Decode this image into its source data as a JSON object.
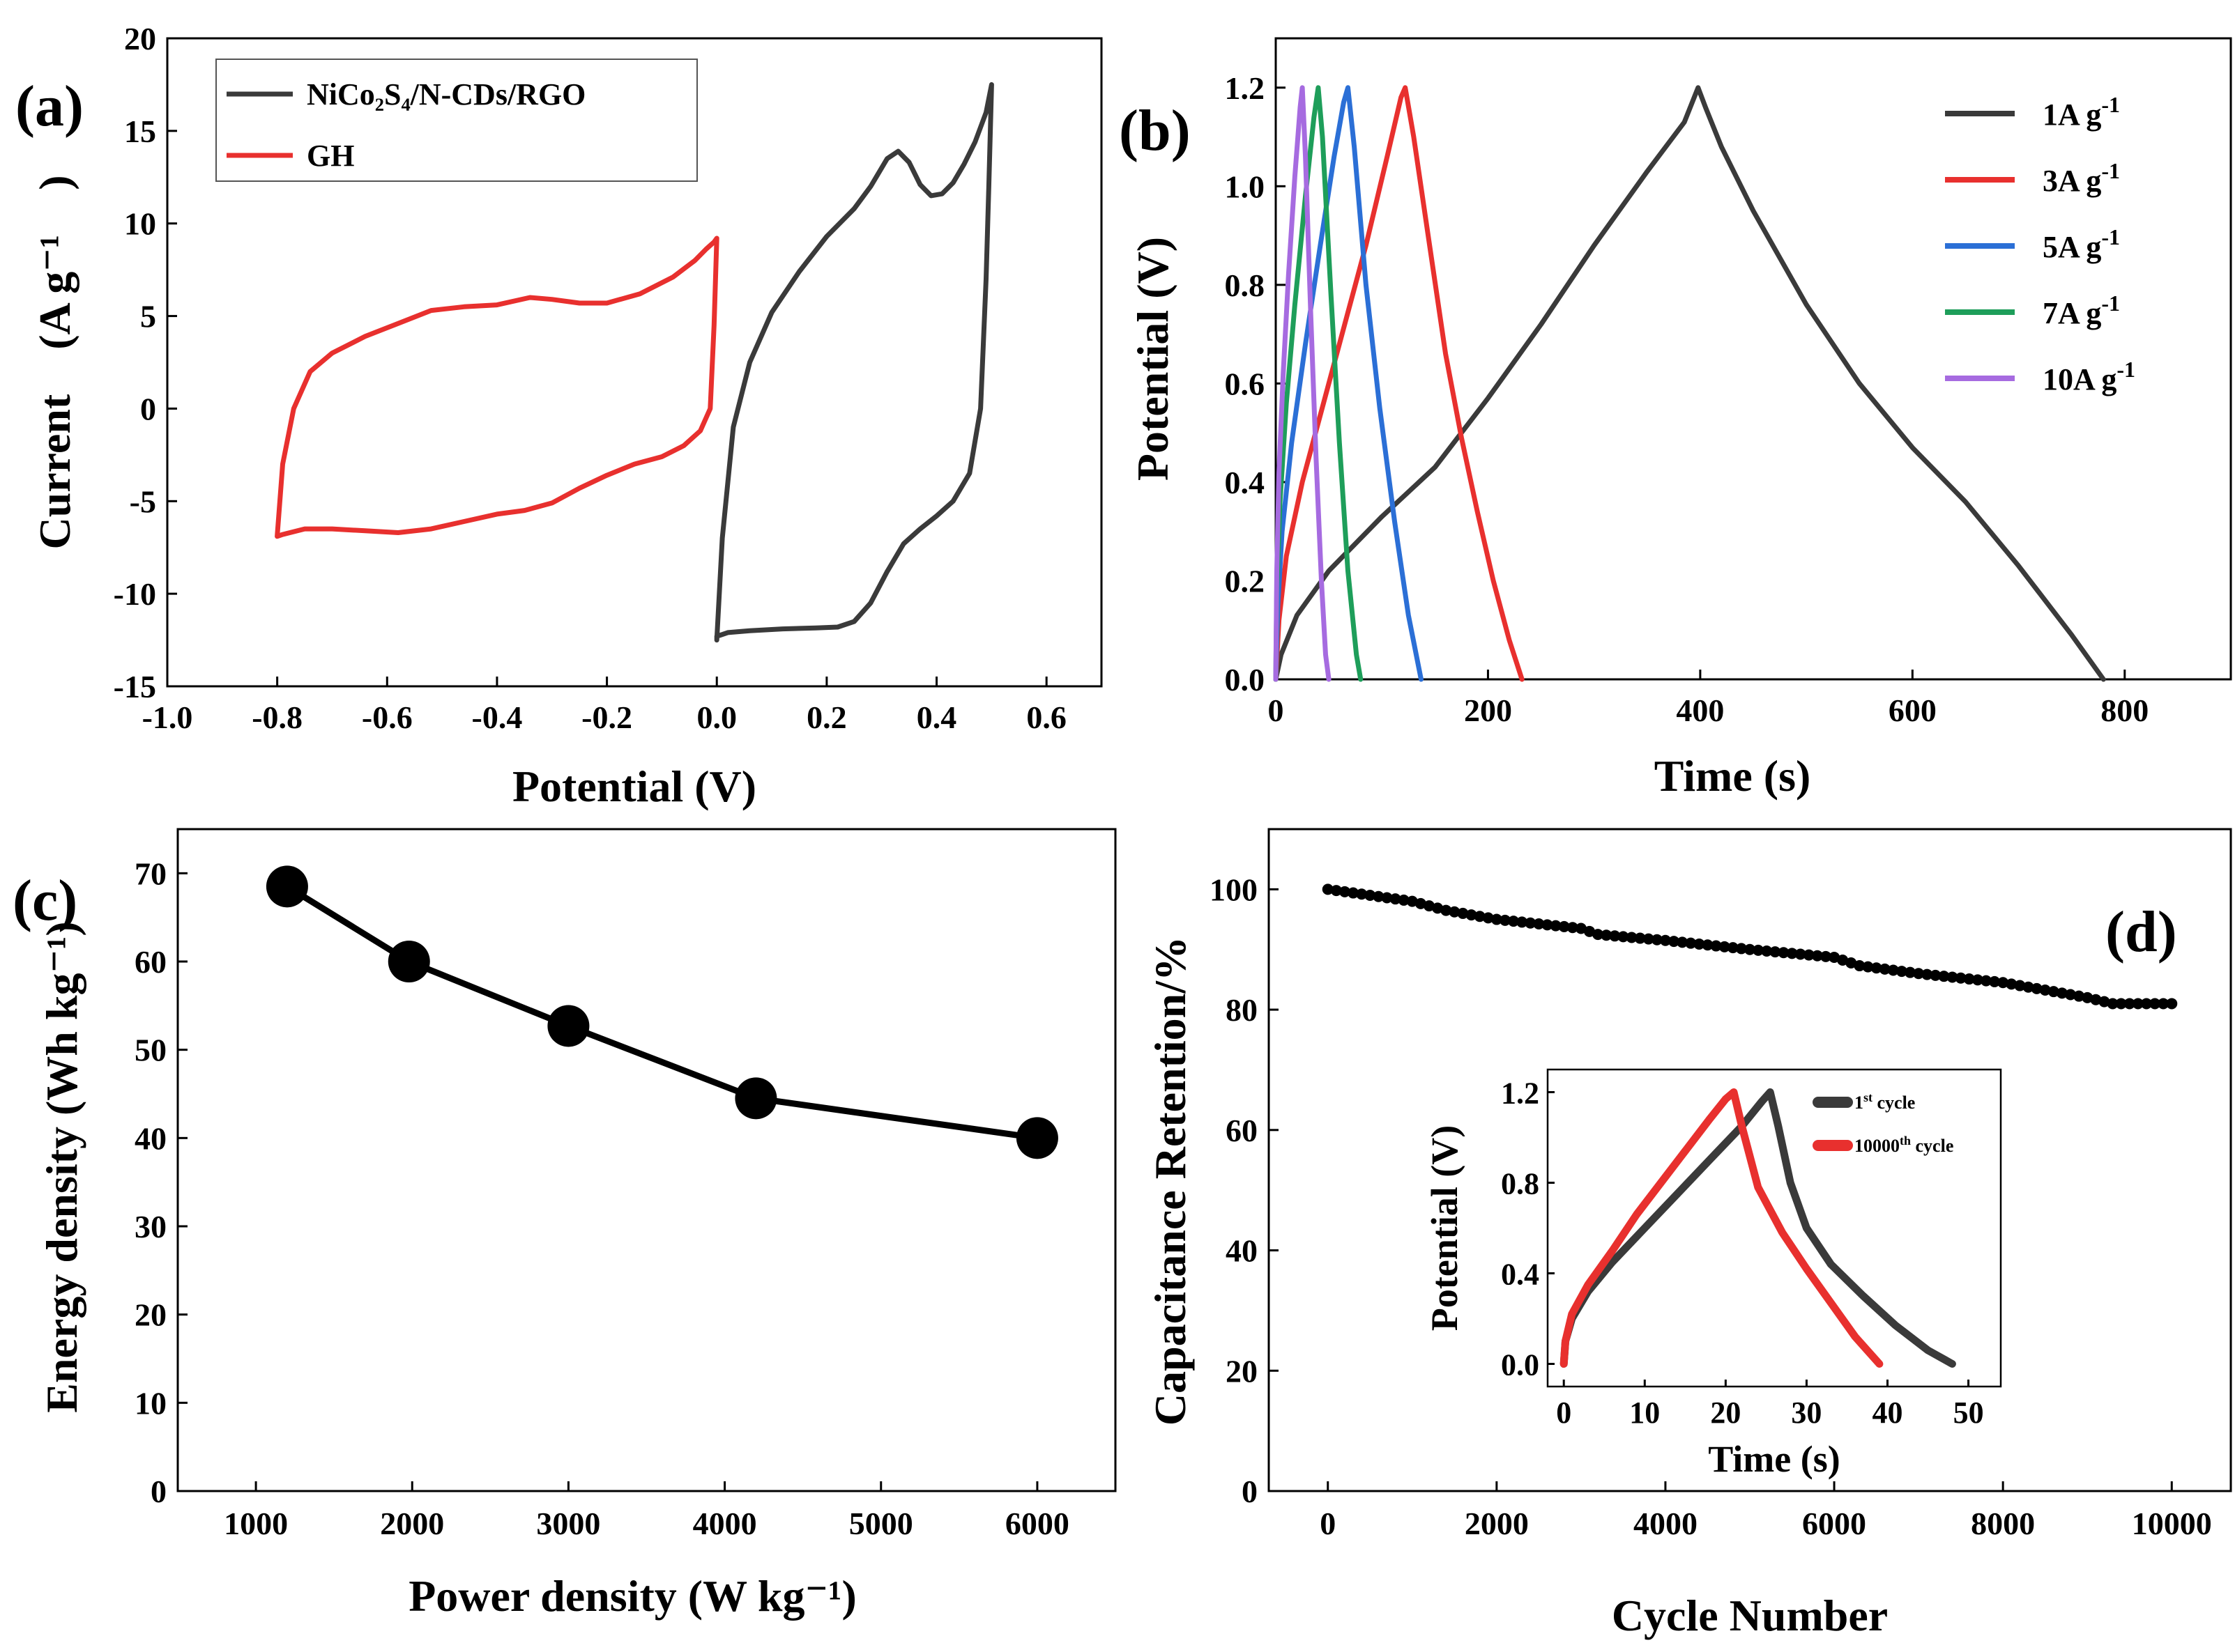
{
  "chart_data": [
    {
      "id": "a",
      "panel_label": "(a)",
      "type": "line",
      "xlabel": "Potential (V)",
      "ylabel": "Current　(A g⁻¹　)",
      "xlim": [
        -1.0,
        0.7
      ],
      "ylim": [
        -15,
        20
      ],
      "xticks": [
        -1.0,
        -0.8,
        -0.6,
        -0.4,
        -0.2,
        0.0,
        0.2,
        0.4,
        0.6
      ],
      "xtick_labels": [
        "-1.0",
        "-0.8",
        "-0.6",
        "-0.4",
        "-0.2",
        "0.0",
        "0.2",
        "0.4",
        "0.6"
      ],
      "yticks": [
        -15,
        -10,
        -5,
        0,
        5,
        10,
        15,
        20
      ],
      "ytick_labels": [
        "-15",
        "-10",
        "-5",
        "0",
        "5",
        "10",
        "15",
        "20"
      ],
      "legend_position": "top-left",
      "series": [
        {
          "name": "NiCo₂S₄/N-CDs/RGO",
          "color": "#3a3a3a",
          "x": [
            0.0,
            0.01,
            0.03,
            0.06,
            0.1,
            0.15,
            0.2,
            0.25,
            0.28,
            0.31,
            0.33,
            0.35,
            0.37,
            0.39,
            0.41,
            0.43,
            0.45,
            0.47,
            0.49,
            0.5,
            0.495,
            0.49,
            0.48,
            0.46,
            0.43,
            0.4,
            0.37,
            0.34,
            0.31,
            0.28,
            0.25,
            0.22,
            0.18,
            0.12,
            0.06,
            0.02,
            0.0,
            0.0
          ],
          "y": [
            -12.5,
            -7.0,
            -1.0,
            2.5,
            5.2,
            7.4,
            9.3,
            10.8,
            12.0,
            13.5,
            13.9,
            13.3,
            12.1,
            11.5,
            11.6,
            12.2,
            13.2,
            14.4,
            16.0,
            17.5,
            12.0,
            7.0,
            0.0,
            -3.5,
            -5.0,
            -5.8,
            -6.5,
            -7.3,
            -8.8,
            -10.5,
            -11.5,
            -11.8,
            -11.85,
            -11.9,
            -12.0,
            -12.1,
            -12.3,
            -12.5
          ]
        },
        {
          "name": "GH",
          "color": "#e8302e",
          "x": [
            -0.8,
            -0.79,
            -0.77,
            -0.74,
            -0.7,
            -0.64,
            -0.58,
            -0.52,
            -0.46,
            -0.4,
            -0.34,
            -0.3,
            -0.25,
            -0.2,
            -0.14,
            -0.08,
            -0.04,
            -0.02,
            -0.005,
            0.0,
            -0.005,
            -0.012,
            -0.03,
            -0.06,
            -0.1,
            -0.15,
            -0.2,
            -0.25,
            -0.3,
            -0.35,
            -0.4,
            -0.46,
            -0.52,
            -0.58,
            -0.64,
            -0.7,
            -0.75,
            -0.79,
            -0.8
          ],
          "y": [
            -6.9,
            -3.0,
            0.0,
            2.0,
            3.0,
            3.9,
            4.6,
            5.3,
            5.5,
            5.6,
            6.0,
            5.9,
            5.7,
            5.7,
            6.2,
            7.1,
            8.0,
            8.6,
            9.0,
            9.2,
            4.5,
            0.0,
            -1.2,
            -2.0,
            -2.6,
            -3.0,
            -3.6,
            -4.3,
            -5.1,
            -5.5,
            -5.7,
            -6.1,
            -6.5,
            -6.7,
            -6.6,
            -6.5,
            -6.5,
            -6.8,
            -6.9
          ]
        }
      ]
    },
    {
      "id": "b",
      "panel_label": "(b)",
      "type": "line",
      "xlabel": "Time (s)",
      "ylabel": "Potential (V)",
      "xlim": [
        0,
        900
      ],
      "ylim": [
        0.0,
        1.3
      ],
      "xticks": [
        0,
        200,
        400,
        600,
        800
      ],
      "xtick_labels": [
        "0",
        "200",
        "400",
        "600",
        "800"
      ],
      "yticks": [
        0.0,
        0.2,
        0.4,
        0.6,
        0.8,
        1.0,
        1.2
      ],
      "ytick_labels": [
        "0.0",
        "0.2",
        "0.4",
        "0.6",
        "0.8",
        "1.0",
        "1.2"
      ],
      "legend_position": "top-right",
      "series": [
        {
          "name": "1A g-1",
          "current_density_label": "1A",
          "unit_label": "g",
          "unit_exponent": "-1",
          "color": "#3a3a3a",
          "x": [
            0,
            5,
            20,
            50,
            100,
            150,
            200,
            250,
            300,
            350,
            385,
            398,
            405,
            420,
            450,
            500,
            550,
            600,
            650,
            700,
            750,
            780
          ],
          "y": [
            0.0,
            0.05,
            0.13,
            0.22,
            0.33,
            0.43,
            0.57,
            0.72,
            0.88,
            1.03,
            1.13,
            1.2,
            1.16,
            1.08,
            0.95,
            0.76,
            0.6,
            0.47,
            0.36,
            0.23,
            0.09,
            0.0
          ]
        },
        {
          "name": "3A g-1",
          "current_density_label": "3A",
          "unit_label": "g",
          "unit_exponent": "-1",
          "color": "#e8302e",
          "x": [
            0,
            3,
            10,
            25,
            45,
            65,
            85,
            105,
            118,
            122,
            130,
            145,
            160,
            175,
            190,
            205,
            220,
            232
          ],
          "y": [
            0.0,
            0.12,
            0.25,
            0.4,
            0.56,
            0.72,
            0.88,
            1.06,
            1.18,
            1.2,
            1.1,
            0.88,
            0.66,
            0.49,
            0.34,
            0.2,
            0.08,
            0.0
          ]
        },
        {
          "name": "5A g-1",
          "current_density_label": "5A",
          "unit_label": "g",
          "unit_exponent": "-1",
          "color": "#2b6fd6",
          "x": [
            0,
            2,
            6,
            15,
            28,
            42,
            55,
            64,
            68,
            74,
            85,
            98,
            112,
            125,
            137
          ],
          "y": [
            0.0,
            0.15,
            0.3,
            0.48,
            0.68,
            0.88,
            1.06,
            1.17,
            1.2,
            1.08,
            0.8,
            0.55,
            0.32,
            0.13,
            0.0
          ]
        },
        {
          "name": "7A g-1",
          "current_density_label": "7A",
          "unit_label": "g",
          "unit_exponent": "-1",
          "color": "#1e9e5a",
          "x": [
            0,
            1,
            4,
            10,
            18,
            28,
            36,
            40,
            44,
            52,
            60,
            68,
            76,
            80
          ],
          "y": [
            0.0,
            0.18,
            0.36,
            0.56,
            0.76,
            0.98,
            1.14,
            1.2,
            1.1,
            0.78,
            0.48,
            0.22,
            0.05,
            0.0
          ]
        },
        {
          "name": "10A g-1",
          "current_density_label": "10A",
          "unit_label": "g",
          "unit_exponent": "-1",
          "color": "#a66be0",
          "x": [
            0,
            1,
            3,
            7,
            12,
            18,
            23,
            25,
            28,
            33,
            38,
            43,
            47,
            50
          ],
          "y": [
            0.0,
            0.22,
            0.42,
            0.62,
            0.82,
            1.02,
            1.16,
            1.2,
            1.06,
            0.74,
            0.45,
            0.2,
            0.05,
            0.0
          ]
        }
      ]
    },
    {
      "id": "c",
      "panel_label": "(c)",
      "type": "line",
      "marker": "circle",
      "xlabel": "Power  density (W kg⁻¹)",
      "ylabel": "Energy density (Wh kg⁻¹)",
      "xlim": [
        500,
        6500
      ],
      "ylim": [
        0,
        75
      ],
      "xticks": [
        1000,
        2000,
        3000,
        4000,
        5000,
        6000
      ],
      "xtick_labels": [
        "1000",
        "2000",
        "3000",
        "4000",
        "5000",
        "6000"
      ],
      "yticks": [
        0,
        10,
        20,
        30,
        40,
        50,
        60,
        70
      ],
      "ytick_labels": [
        "0",
        "10",
        "20",
        "30",
        "40",
        "50",
        "60",
        "70"
      ],
      "series": [
        {
          "name": "Energy density",
          "color": "#000000",
          "x": [
            1200,
            1980,
            3000,
            4200,
            6000
          ],
          "y": [
            68.5,
            60,
            52.7,
            44.5,
            40
          ]
        }
      ]
    },
    {
      "id": "d",
      "panel_label": "(d)",
      "type": "scatter",
      "xlabel": "Cycle Number",
      "ylabel": "Capacitance Retention/%",
      "xlim": [
        -700,
        10700
      ],
      "ylim": [
        0,
        110
      ],
      "xticks": [
        0,
        2000,
        4000,
        6000,
        8000,
        10000
      ],
      "xtick_labels": [
        "0",
        "2000",
        "4000",
        "6000",
        "8000",
        "10000"
      ],
      "yticks": [
        0,
        20,
        40,
        60,
        80,
        100
      ],
      "ytick_labels": [
        "0",
        "20",
        "40",
        "60",
        "80",
        "100"
      ],
      "series": [
        {
          "name": "Capacitance retention",
          "color": "#000000",
          "x_start": 0,
          "x_end": 10000,
          "x_step": 100,
          "anchor_x": [
            0,
            1000,
            1400,
            2000,
            3000,
            3200,
            4000,
            5000,
            6000,
            6300,
            7000,
            8000,
            9000,
            9300,
            10000
          ],
          "anchor_y": [
            100,
            98,
            96.5,
            95,
            93.5,
            92.5,
            91.5,
            90,
            88.7,
            87.3,
            86,
            84.5,
            82,
            81,
            81
          ]
        }
      ],
      "inset": {
        "type": "line",
        "xlabel": "Time (s)",
        "ylabel": "Potential (V)",
        "xlim": [
          -2,
          54
        ],
        "ylim": [
          -0.1,
          1.3
        ],
        "xticks": [
          0,
          10,
          20,
          30,
          40,
          50
        ],
        "xtick_labels": [
          "0",
          "10",
          "20",
          "30",
          "40",
          "50"
        ],
        "yticks": [
          0.0,
          0.4,
          0.8,
          1.2
        ],
        "ytick_labels": [
          "0.0",
          "0.4",
          "0.8",
          "1.2"
        ],
        "legend_position": "top-right",
        "series": [
          {
            "name": "1st cycle",
            "label_main": "1",
            "label_sup": "st",
            "label_rest": " cycle",
            "color": "#3a3a3a",
            "x": [
              0,
              0.2,
              1,
              3,
              6,
              10,
              14,
              18,
              22,
              24.5,
              25.5,
              26.5,
              28,
              30,
              33,
              37,
              41,
              45,
              48
            ],
            "y": [
              0.0,
              0.1,
              0.2,
              0.32,
              0.45,
              0.6,
              0.75,
              0.9,
              1.05,
              1.16,
              1.2,
              1.05,
              0.8,
              0.6,
              0.44,
              0.3,
              0.17,
              0.06,
              0.0
            ]
          },
          {
            "name": "10000th cycle",
            "label_main": "10000",
            "label_sup": "th",
            "label_rest": " cycle",
            "color": "#e8302e",
            "x": [
              0,
              0.2,
              1,
              3,
              6,
              9,
              12,
              15,
              18,
              20,
              21,
              22,
              24,
              27,
              30,
              33,
              36,
              39
            ],
            "y": [
              0.0,
              0.1,
              0.22,
              0.35,
              0.5,
              0.66,
              0.8,
              0.94,
              1.08,
              1.17,
              1.2,
              1.05,
              0.78,
              0.58,
              0.42,
              0.27,
              0.12,
              0.0
            ]
          }
        ]
      }
    }
  ]
}
